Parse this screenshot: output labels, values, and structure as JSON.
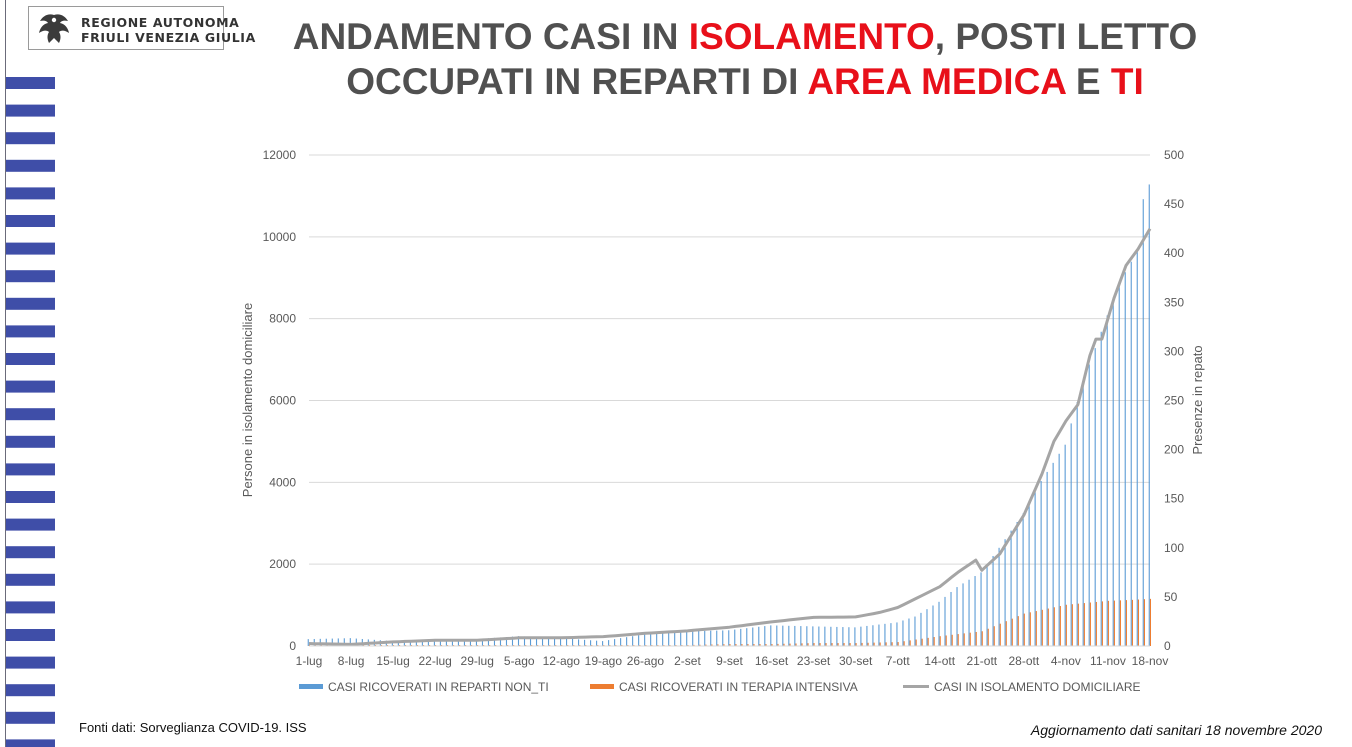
{
  "header": {
    "logo_line1": "REGIONE AUTONOMA",
    "logo_line2": "FRIULI VENEZIA GIULIA",
    "title_part1": "ANDAMENTO CASI IN ",
    "title_hl1": "ISOLAMENTO",
    "title_part2": ", POSTI LETTO OCCUPATI IN REPARTI DI ",
    "title_hl2": "AREA MEDICA",
    "title_part3": " E ",
    "title_hl3": "TI"
  },
  "colors": {
    "title_text": "#505050",
    "title_highlight": "#e8101a",
    "stripes": "#3f4ea8",
    "series_reparti": "#5b9bd5",
    "series_ti": "#ed7d31",
    "series_isolamento": "#a5a5a5"
  },
  "footer": {
    "source": "Fonti dati: Sorveglianza COVID-19. ISS",
    "update": "Aggiornamento dati sanitari 18 novembre 2020"
  },
  "chart_data": {
    "type": "bar+line",
    "x_start": "1-lug",
    "x_end": "18-nov",
    "x_tick_labels": [
      "1-lug",
      "8-lug",
      "15-lug",
      "22-lug",
      "29-lug",
      "5-ago",
      "12-ago",
      "19-ago",
      "26-ago",
      "2-set",
      "9-set",
      "16-set",
      "23-set",
      "30-set",
      "7-ott",
      "14-ott",
      "21-ott",
      "28-ott",
      "4-nov",
      "11-nov",
      "18-nov"
    ],
    "y_left": {
      "label": "Persone in isolamento domiciliare",
      "min": 0,
      "max": 12000,
      "ticks": [
        0,
        2000,
        4000,
        6000,
        8000,
        10000,
        12000
      ]
    },
    "y_right": {
      "label": "Presenze in repato",
      "min": 0,
      "max": 500,
      "ticks": [
        0,
        50,
        100,
        150,
        200,
        250,
        300,
        350,
        400,
        450,
        500
      ]
    },
    "grid": true,
    "legend_position": "bottom",
    "series": [
      {
        "name": "CASI RICOVERATI IN REPARTI NON_TI",
        "type": "bar",
        "axis": "right",
        "anchors": [
          [
            "1-lug",
            7
          ],
          [
            "8-lug",
            8
          ],
          [
            "15-lug",
            5
          ],
          [
            "22-lug",
            7
          ],
          [
            "29-lug",
            7
          ],
          [
            "5-ago",
            10
          ],
          [
            "12-ago",
            8
          ],
          [
            "19-ago",
            5
          ],
          [
            "26-ago",
            12
          ],
          [
            "2-set",
            15
          ],
          [
            "9-set",
            16
          ],
          [
            "16-set",
            21
          ],
          [
            "23-set",
            20
          ],
          [
            "30-set",
            19
          ],
          [
            "7-ott",
            24
          ],
          [
            "10-ott",
            30
          ],
          [
            "14-ott",
            45
          ],
          [
            "17-ott",
            60
          ],
          [
            "21-ott",
            75
          ],
          [
            "24-ott",
            100
          ],
          [
            "28-ott",
            135
          ],
          [
            "31-ott",
            168
          ],
          [
            "4-nov",
            205
          ],
          [
            "7-nov",
            270
          ],
          [
            "10-nov",
            320
          ],
          [
            "13-nov",
            370
          ],
          [
            "16-nov",
            402
          ],
          [
            "17-nov",
            455
          ],
          [
            "18-nov",
            470
          ]
        ]
      },
      {
        "name": "CASI RICOVERATI IN TERAPIA INTENSIVA",
        "type": "bar",
        "axis": "right",
        "anchors": [
          [
            "1-lug",
            1
          ],
          [
            "8-lug",
            1
          ],
          [
            "15-lug",
            1
          ],
          [
            "22-lug",
            1
          ],
          [
            "29-lug",
            1
          ],
          [
            "5-ago",
            1
          ],
          [
            "12-ago",
            1
          ],
          [
            "19-ago",
            1
          ],
          [
            "26-ago",
            1
          ],
          [
            "2-set",
            1
          ],
          [
            "9-set",
            2
          ],
          [
            "16-set",
            2
          ],
          [
            "23-set",
            3
          ],
          [
            "30-set",
            3
          ],
          [
            "7-ott",
            4
          ],
          [
            "14-ott",
            10
          ],
          [
            "21-ott",
            15
          ],
          [
            "28-ott",
            33
          ],
          [
            "4-nov",
            42
          ],
          [
            "11-nov",
            46
          ],
          [
            "15-nov",
            47
          ],
          [
            "18-nov",
            48
          ]
        ]
      },
      {
        "name": "CASI IN ISOLAMENTO DOMICILIARE",
        "type": "line",
        "axis": "left",
        "anchors": [
          [
            "1-lug",
            60
          ],
          [
            "8-lug",
            40
          ],
          [
            "15-lug",
            100
          ],
          [
            "22-lug",
            140
          ],
          [
            "29-lug",
            140
          ],
          [
            "5-ago",
            200
          ],
          [
            "12-ago",
            200
          ],
          [
            "19-ago",
            230
          ],
          [
            "26-ago",
            310
          ],
          [
            "2-set",
            370
          ],
          [
            "9-set",
            460
          ],
          [
            "16-set",
            590
          ],
          [
            "23-set",
            700
          ],
          [
            "30-set",
            710
          ],
          [
            "4-ott",
            820
          ],
          [
            "7-ott",
            940
          ],
          [
            "11-ott",
            1230
          ],
          [
            "14-ott",
            1450
          ],
          [
            "17-ott",
            1800
          ],
          [
            "20-ott",
            2100
          ],
          [
            "21-ott",
            1850
          ],
          [
            "24-ott",
            2250
          ],
          [
            "28-ott",
            3200
          ],
          [
            "31-ott",
            4200
          ],
          [
            "2-nov",
            5000
          ],
          [
            "4-nov",
            5500
          ],
          [
            "6-nov",
            5900
          ],
          [
            "8-nov",
            7100
          ],
          [
            "9-nov",
            7500
          ],
          [
            "10-nov",
            7500
          ],
          [
            "12-nov",
            8500
          ],
          [
            "14-nov",
            9300
          ],
          [
            "16-nov",
            9700
          ],
          [
            "18-nov",
            10200
          ]
        ]
      }
    ]
  }
}
